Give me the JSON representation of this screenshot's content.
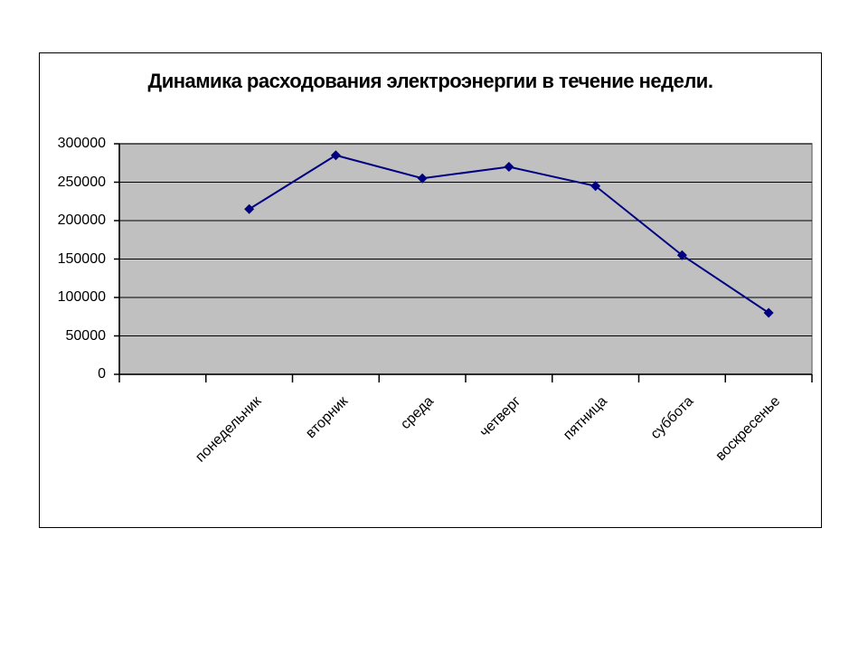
{
  "chart_data": {
    "type": "line",
    "title": "Динамика расходования электроэнергии в течение недели.",
    "categories": [
      "",
      "понедельник",
      "вторник",
      "среда",
      "четверг",
      "пятница",
      "суббота",
      "воскресенье"
    ],
    "values": [
      null,
      215000,
      285000,
      255000,
      270000,
      245000,
      155000,
      80000
    ],
    "xlabel": "",
    "ylabel": "",
    "ylim": [
      0,
      300000
    ],
    "ytick_step": 50000,
    "yticks": [
      "0",
      "50000",
      "100000",
      "150000",
      "200000",
      "250000",
      "300000"
    ],
    "grid": "horizontal",
    "legend_position": "none",
    "xlabel_rotation_deg": 45,
    "marker": "diamond",
    "colors": {
      "series_line": "#000080",
      "series_marker": "#000080",
      "plot_background": "#c0c0c0",
      "plot_border": "#808080",
      "gridline": "#000000",
      "axis": "#000000",
      "chart_background": "#ffffff",
      "frame_border": "#000000",
      "title_text": "#000000",
      "tick_label_text": "#000000"
    }
  }
}
